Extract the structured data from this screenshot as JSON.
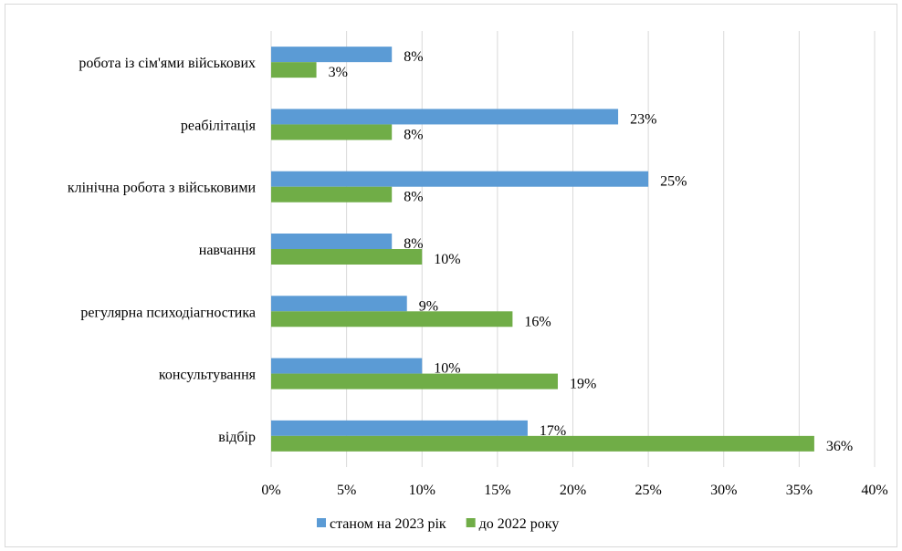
{
  "chart_data": {
    "type": "bar",
    "orientation": "horizontal",
    "categories": [
      "робота із сім'ями військових",
      "реабілітація",
      "клінічна робота з військовими",
      "навчання",
      "регулярна психодіагностика",
      "консультування",
      "відбір"
    ],
    "series": [
      {
        "name": "станом на 2023 рік",
        "color": "#5b9bd5",
        "values": [
          8,
          23,
          25,
          8,
          9,
          10,
          17
        ],
        "labels": [
          "8%",
          "23%",
          "25%",
          "8%",
          "9%",
          "10%",
          "17%"
        ]
      },
      {
        "name": "до 2022 року",
        "color": "#70ad47",
        "values": [
          3,
          8,
          8,
          10,
          16,
          19,
          36
        ],
        "labels": [
          "3%",
          "8%",
          "8%",
          "10%",
          "16%",
          "19%",
          "36%"
        ]
      }
    ],
    "xlim": [
      0,
      40
    ],
    "x_ticks": [
      "0%",
      "5%",
      "10%",
      "15%",
      "20%",
      "25%",
      "30%",
      "35%",
      "40%"
    ],
    "grid": true,
    "gridColor": "#d9d9d9",
    "legend_position": "bottom",
    "title": "",
    "xlabel": "",
    "ylabel": ""
  }
}
